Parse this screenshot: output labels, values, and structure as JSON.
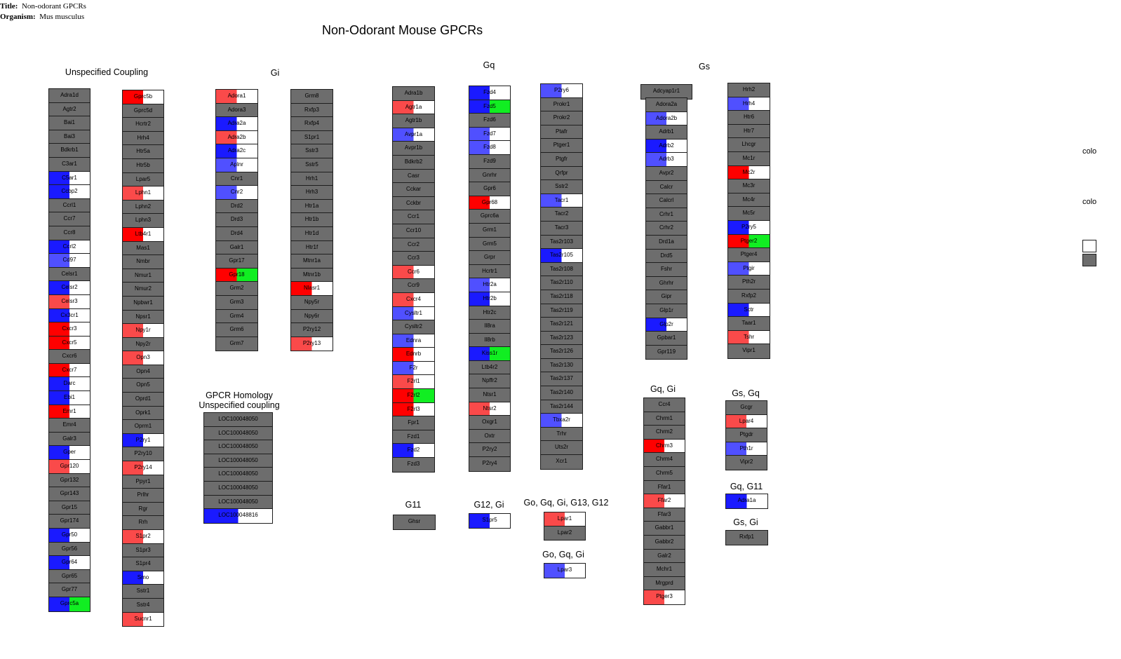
{
  "meta": {
    "title_label": "Title:",
    "title_value": "Non-odorant GPCRs",
    "organism_label": "Organism:",
    "organism_value": "Mus musculus"
  },
  "page_title": "Non-Odorant Mouse GPCRs",
  "colors": {
    "gray": "#6d6d6d",
    "white": "#ffffff",
    "red": "#ff0000",
    "light_red": "#fa4a4a",
    "blue": "#1a1aff",
    "light_blue": "#5050ff",
    "green": "#11ee22",
    "border": "#1e1e1e"
  },
  "groups": [
    {
      "key": "unspecified",
      "label": "Unspecified Coupling"
    },
    {
      "key": "gi",
      "label": "Gi"
    },
    {
      "key": "gq",
      "label": "Gq"
    },
    {
      "key": "gs",
      "label": "Gs"
    },
    {
      "key": "homology",
      "label": "GPCR Homology\nUnspecified coupling"
    },
    {
      "key": "g11",
      "label": "G11"
    },
    {
      "key": "g12gi",
      "label": "G12, Gi"
    },
    {
      "key": "gogqgig13g12",
      "label": "Go, Gq, Gi, G13, G12"
    },
    {
      "key": "gogqgi",
      "label": "Go, Gq, Gi"
    },
    {
      "key": "gqgi",
      "label": "Gq, Gi"
    },
    {
      "key": "gsgq",
      "label": "Gs, Gq"
    },
    {
      "key": "gqg11",
      "label": "Gq, G11"
    },
    {
      "key": "gsgi",
      "label": "Gs, Gi"
    }
  ],
  "columns": [
    {
      "genes": [
        {
          "n": "Adra1d"
        },
        {
          "n": "Agtr2"
        },
        {
          "n": "Bai1"
        },
        {
          "n": "Bai3"
        },
        {
          "n": "Bdkrb1"
        },
        {
          "n": "C3ar1"
        },
        {
          "n": "C5ar1",
          "c": "blue"
        },
        {
          "n": "Ccbp2",
          "c": "blue"
        },
        {
          "n": "Ccrl1"
        },
        {
          "n": "Ccr7"
        },
        {
          "n": "Ccr8"
        },
        {
          "n": "Ccrl2",
          "c": "blue"
        },
        {
          "n": "Cd97",
          "c": "lblue"
        },
        {
          "n": "Celsr1"
        },
        {
          "n": "Celsr2",
          "c": "blue"
        },
        {
          "n": "Celsr3",
          "c": "lred"
        },
        {
          "n": "Cx3cr1",
          "c": "blue"
        },
        {
          "n": "Cxcr3",
          "c": "red"
        },
        {
          "n": "Cxcr5",
          "c": "red"
        },
        {
          "n": "Cxcr6"
        },
        {
          "n": "Cxcr7",
          "c": "red"
        },
        {
          "n": "Darc",
          "c": "blue"
        },
        {
          "n": "Ebi1",
          "c": "blue"
        },
        {
          "n": "Emr1",
          "c": "red"
        },
        {
          "n": "Emr4"
        },
        {
          "n": "Galr3"
        },
        {
          "n": "Gper",
          "c": "blue"
        },
        {
          "n": "Gpr120",
          "c": "lred"
        },
        {
          "n": "Gpr132"
        },
        {
          "n": "Gpr143"
        },
        {
          "n": "Gpr15"
        },
        {
          "n": "Gpr174"
        },
        {
          "n": "Gpr50",
          "c": "blue"
        },
        {
          "n": "Gpr56"
        },
        {
          "n": "Gpr64",
          "c": "blue"
        },
        {
          "n": "Gpr65"
        },
        {
          "n": "Gpr77"
        },
        {
          "n": "Gprc5a",
          "c": "bgreen"
        }
      ]
    },
    {
      "genes": [
        {
          "n": "Gprc5b",
          "c": "red"
        },
        {
          "n": "Gprc5d"
        },
        {
          "n": "Hcrtr2"
        },
        {
          "n": "Hrh4"
        },
        {
          "n": "Htr5a"
        },
        {
          "n": "Htr5b"
        },
        {
          "n": "Lpar5"
        },
        {
          "n": "Lphn1",
          "c": "lred"
        },
        {
          "n": "Lphn2"
        },
        {
          "n": "Lphn3"
        },
        {
          "n": "Ltb4r1",
          "c": "red"
        },
        {
          "n": "Mas1"
        },
        {
          "n": "Nmbr"
        },
        {
          "n": "Nmur1"
        },
        {
          "n": "Nmur2"
        },
        {
          "n": "Npbwr1"
        },
        {
          "n": "Npsr1"
        },
        {
          "n": "Npy1r",
          "c": "lred"
        },
        {
          "n": "Npy2r"
        },
        {
          "n": "Opn3",
          "c": "lred"
        },
        {
          "n": "Opn4"
        },
        {
          "n": "Opn5"
        },
        {
          "n": "Oprd1"
        },
        {
          "n": "Oprk1"
        },
        {
          "n": "Oprm1"
        },
        {
          "n": "P2ry1",
          "c": "blue"
        },
        {
          "n": "P2ry10"
        },
        {
          "n": "P2ry14",
          "c": "lred"
        },
        {
          "n": "Ppyr1"
        },
        {
          "n": "Prlhr"
        },
        {
          "n": "Rgr"
        },
        {
          "n": "Rrh"
        },
        {
          "n": "S1pr2",
          "c": "lred"
        },
        {
          "n": "S1pr3"
        },
        {
          "n": "S1pr4"
        },
        {
          "n": "Smo",
          "c": "blue"
        },
        {
          "n": "Sstr1"
        },
        {
          "n": "Sstr4"
        },
        {
          "n": "Sucnr1",
          "c": "lred"
        }
      ]
    },
    {
      "genes": [
        {
          "n": "Adora1",
          "c": "lred"
        },
        {
          "n": "Adora3"
        },
        {
          "n": "Adra2a",
          "c": "blue"
        },
        {
          "n": "Adra2b",
          "c": "lred"
        },
        {
          "n": "Adra2c",
          "c": "blue"
        },
        {
          "n": "Aplnr",
          "c": "lblue"
        },
        {
          "n": "Cnr1"
        },
        {
          "n": "Cnr2",
          "c": "lblue"
        },
        {
          "n": "Drd2"
        },
        {
          "n": "Drd3"
        },
        {
          "n": "Drd4"
        },
        {
          "n": "Galr1"
        },
        {
          "n": "Gpr17"
        },
        {
          "n": "Gpr18",
          "c": "rgreen"
        },
        {
          "n": "Grm2"
        },
        {
          "n": "Grm3"
        },
        {
          "n": "Grm4"
        },
        {
          "n": "Grm6"
        },
        {
          "n": "Grm7"
        }
      ]
    },
    {
      "genes": [
        {
          "n": "Grm8"
        },
        {
          "n": "Rxfp3"
        },
        {
          "n": "Rxfp4"
        },
        {
          "n": "S1pr1"
        },
        {
          "n": "Sstr3"
        },
        {
          "n": "Sstr5"
        },
        {
          "n": "Hrh1"
        },
        {
          "n": "Hrh3"
        },
        {
          "n": "Htr1a"
        },
        {
          "n": "Htr1b"
        },
        {
          "n": "Htr1d"
        },
        {
          "n": "Htr1f"
        },
        {
          "n": "Mtnr1a"
        },
        {
          "n": "Mtnr1b"
        },
        {
          "n": "Nlasr1",
          "c": "red"
        },
        {
          "n": "Npy5r"
        },
        {
          "n": "Npy6r"
        },
        {
          "n": "P2ry12"
        },
        {
          "n": "P2ry13",
          "c": "lred"
        }
      ]
    },
    {
      "genes": [
        {
          "n": "LOC100048050"
        },
        {
          "n": "LOC100048050"
        },
        {
          "n": "LOC100048050"
        },
        {
          "n": "LOC100048050"
        },
        {
          "n": "LOC100048050"
        },
        {
          "n": "LOC100048050"
        },
        {
          "n": "LOC100048050"
        },
        {
          "n": "LOC100048816",
          "c": "blue"
        }
      ]
    },
    {
      "genes": [
        {
          "n": "Adra1b"
        },
        {
          "n": "Agtr1a",
          "c": "lred"
        },
        {
          "n": "Agtr1b"
        },
        {
          "n": "Avpr1a",
          "c": "lblue"
        },
        {
          "n": "Avpr1b"
        },
        {
          "n": "Bdkrb2"
        },
        {
          "n": "Casr"
        },
        {
          "n": "Cckar"
        },
        {
          "n": "Cckbr"
        },
        {
          "n": "Ccr1"
        },
        {
          "n": "Ccr10"
        },
        {
          "n": "Ccr2"
        },
        {
          "n": "Ccr3"
        },
        {
          "n": "Ccr6",
          "c": "lred"
        },
        {
          "n": "Ccr9"
        },
        {
          "n": "Cxcr4",
          "c": "lred"
        },
        {
          "n": "Cysltr1",
          "c": "lblue"
        },
        {
          "n": "Cysltr2"
        },
        {
          "n": "Ednra",
          "c": "lblue"
        },
        {
          "n": "Ednrb",
          "c": "red"
        },
        {
          "n": "F2r",
          "c": "lblue"
        },
        {
          "n": "F2rl1",
          "c": "lred"
        },
        {
          "n": "F2rl2",
          "c": "rgreen"
        },
        {
          "n": "F2rl3",
          "c": "red"
        },
        {
          "n": "Fpr1"
        },
        {
          "n": "Fzd1"
        },
        {
          "n": "Fzd2",
          "c": "blue"
        },
        {
          "n": "Fzd3"
        }
      ]
    },
    {
      "genes": [
        {
          "n": "Fzd4",
          "c": "blue"
        },
        {
          "n": "Fzd5",
          "c": "bgreen"
        },
        {
          "n": "Fzd6"
        },
        {
          "n": "Fzd7",
          "c": "lblue"
        },
        {
          "n": "Fzd8",
          "c": "lblue"
        },
        {
          "n": "Fzd9"
        },
        {
          "n": "Gnrhr"
        },
        {
          "n": "Gpr6"
        },
        {
          "n": "Gpr68",
          "c": "red"
        },
        {
          "n": "Gprc6a"
        },
        {
          "n": "Grm1"
        },
        {
          "n": "Grm5"
        },
        {
          "n": "Grpr"
        },
        {
          "n": "Hcrtr1"
        },
        {
          "n": "Htr2a",
          "c": "lblue"
        },
        {
          "n": "Htr2b",
          "c": "blue"
        },
        {
          "n": "Htr2c"
        },
        {
          "n": "Il8ra"
        },
        {
          "n": "Il8rb"
        },
        {
          "n": "Kiss1r",
          "c": "bgreen"
        },
        {
          "n": "Ltb4r2"
        },
        {
          "n": "Npffr2"
        },
        {
          "n": "Ntsr1"
        },
        {
          "n": "Ntsr2",
          "c": "lred"
        },
        {
          "n": "Oxgr1"
        },
        {
          "n": "Oxtr"
        },
        {
          "n": "P2ry2"
        },
        {
          "n": "P2ry4"
        }
      ]
    },
    {
      "genes": [
        {
          "n": "P2ry6",
          "c": "lblue"
        },
        {
          "n": "Prokr1"
        },
        {
          "n": "Prokr2"
        },
        {
          "n": "Ptafr"
        },
        {
          "n": "Ptger1"
        },
        {
          "n": "Ptgfr"
        },
        {
          "n": "Qrfpr"
        },
        {
          "n": "Sstr2"
        },
        {
          "n": "Tacr1",
          "c": "lblue"
        },
        {
          "n": "Tacr2"
        },
        {
          "n": "Tacr3"
        },
        {
          "n": "Tas2r103"
        },
        {
          "n": "Tas2r105",
          "c": "blue"
        },
        {
          "n": "Tas2r108"
        },
        {
          "n": "Tas2r110"
        },
        {
          "n": "Tas2r118"
        },
        {
          "n": "Tas2r119"
        },
        {
          "n": "Tas2r121"
        },
        {
          "n": "Tas2r123"
        },
        {
          "n": "Tas2r126"
        },
        {
          "n": "Tas2r130"
        },
        {
          "n": "Tas2r137"
        },
        {
          "n": "Tas2r140"
        },
        {
          "n": "Tas2r144"
        },
        {
          "n": "Tbxa2r",
          "c": "lblue"
        },
        {
          "n": "Trhr"
        },
        {
          "n": "Uts2r"
        },
        {
          "n": "Xcr1"
        }
      ]
    },
    {
      "genes": [
        {
          "n": "Ghsr"
        }
      ]
    },
    {
      "genes": [
        {
          "n": "S1pr5",
          "c": "blue"
        }
      ]
    },
    {
      "genes": [
        {
          "n": "Lpar1",
          "c": "lred"
        },
        {
          "n": "Lpar2"
        }
      ]
    },
    {
      "genes": [
        {
          "n": "Lpar3",
          "c": "lblue"
        }
      ]
    },
    {
      "genes": [
        {
          "n": "Adcyap1r1"
        }
      ]
    },
    {
      "genes": [
        {
          "n": "Adora2a"
        },
        {
          "n": "Adora2b",
          "c": "lblue"
        },
        {
          "n": "Adrb1"
        },
        {
          "n": "Adrb2",
          "c": "blue"
        },
        {
          "n": "Adrb3",
          "c": "lblue"
        },
        {
          "n": "Avpr2"
        },
        {
          "n": "Calcr"
        },
        {
          "n": "Calcrl"
        },
        {
          "n": "Crhr1"
        },
        {
          "n": "Crhr2"
        },
        {
          "n": "Drd1a"
        },
        {
          "n": "Drd5"
        },
        {
          "n": "Fshr"
        },
        {
          "n": "Ghrhr"
        },
        {
          "n": "Gipr"
        },
        {
          "n": "Glp1r"
        },
        {
          "n": "Glp2r",
          "c": "blue"
        },
        {
          "n": "Gpbar1"
        },
        {
          "n": "Gpr119"
        }
      ]
    },
    {
      "genes": [
        {
          "n": "Hrh2"
        },
        {
          "n": "Hrh4",
          "c": "lblue"
        },
        {
          "n": "Htr6"
        },
        {
          "n": "Htr7"
        },
        {
          "n": "Lhcgr"
        },
        {
          "n": "Mc1r"
        },
        {
          "n": "Mc2r",
          "c": "red"
        },
        {
          "n": "Mc3r"
        },
        {
          "n": "Mc4r"
        },
        {
          "n": "Mc5r"
        },
        {
          "n": "P2ry5",
          "c": "blue"
        },
        {
          "n": "Ptger2",
          "c": "rgreen"
        },
        {
          "n": "Ptger4"
        },
        {
          "n": "Ptgir",
          "c": "lblue"
        },
        {
          "n": "Pth2r"
        },
        {
          "n": "Rxfp2"
        },
        {
          "n": "Sctr",
          "c": "blue"
        },
        {
          "n": "Taar1"
        },
        {
          "n": "Tshr",
          "c": "lred"
        },
        {
          "n": "Vipr1"
        }
      ]
    },
    {
      "genes": [
        {
          "n": "Ccr4"
        },
        {
          "n": "Chrm1"
        },
        {
          "n": "Chrm2"
        },
        {
          "n": "Chrm3",
          "c": "red"
        },
        {
          "n": "Chrm4"
        },
        {
          "n": "Chrm5"
        },
        {
          "n": "Ffar1"
        },
        {
          "n": "Ffar2",
          "c": "lred"
        },
        {
          "n": "Ffar3"
        },
        {
          "n": "Gabbr1"
        },
        {
          "n": "Gabbr2"
        },
        {
          "n": "Galr2"
        },
        {
          "n": "Mchr1"
        },
        {
          "n": "Mrgprd"
        },
        {
          "n": "Ptger3",
          "c": "lred"
        }
      ]
    },
    {
      "genes": [
        {
          "n": "Gcgr"
        },
        {
          "n": "Lpar4",
          "c": "lred"
        },
        {
          "n": "Ptgdr"
        },
        {
          "n": "Pth1r",
          "c": "lblue"
        },
        {
          "n": "Vipr2"
        }
      ]
    },
    {
      "genes": [
        {
          "n": "Adra1a",
          "c": "blue"
        }
      ]
    },
    {
      "genes": [
        {
          "n": "Rxfp1"
        }
      ]
    }
  ],
  "legend": {
    "label_1": "colo",
    "label_2": "colo"
  }
}
